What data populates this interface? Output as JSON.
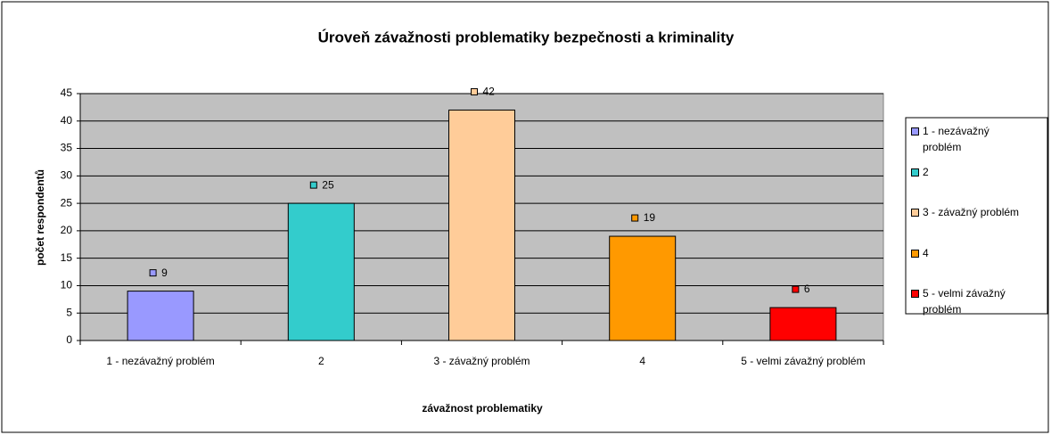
{
  "chart_data": {
    "type": "bar",
    "title": "Úroveň závažnosti problematiky bezpečnosti a kriminality",
    "x_label": "závažnost problematiky",
    "y_label": "počet respondentů",
    "categories": [
      "1 - nezávažný problém",
      "2",
      "3 - závažný problém",
      "4",
      "5 - velmi závažný problém"
    ],
    "values": [
      9,
      25,
      42,
      19,
      6
    ],
    "colors": [
      "#9999ff",
      "#33cccc",
      "#ffcc99",
      "#ff9900",
      "#ff0000"
    ],
    "ylim": [
      0,
      45
    ],
    "yticks": [
      0,
      5,
      10,
      15,
      20,
      25,
      30,
      35,
      40,
      45
    ],
    "grid": true,
    "legend": "right"
  }
}
